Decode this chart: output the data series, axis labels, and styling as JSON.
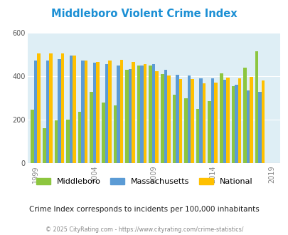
{
  "title": "Middleboro Violent Crime Index",
  "subtitle": "Crime Index corresponds to incidents per 100,000 inhabitants",
  "footer": "© 2025 CityRating.com - https://www.cityrating.com/crime-statistics/",
  "years": [
    1999,
    2000,
    2001,
    2002,
    2003,
    2004,
    2005,
    2006,
    2007,
    2008,
    2009,
    2010,
    2011,
    2012,
    2013,
    2014,
    2015,
    2016,
    2017,
    2018,
    2019
  ],
  "middleboro": [
    248,
    162,
    198,
    200,
    238,
    330,
    278,
    265,
    430,
    450,
    450,
    410,
    315,
    300,
    250,
    285,
    415,
    355,
    440,
    515,
    null
  ],
  "massachusetts": [
    472,
    472,
    480,
    495,
    472,
    462,
    458,
    450,
    435,
    450,
    455,
    430,
    408,
    405,
    390,
    390,
    385,
    360,
    335,
    330,
    null
  ],
  "national": [
    507,
    507,
    507,
    495,
    472,
    465,
    472,
    477,
    465,
    458,
    425,
    403,
    388,
    387,
    367,
    372,
    395,
    390,
    398,
    380,
    null
  ],
  "tick_years": [
    1999,
    2004,
    2009,
    2014,
    2019
  ],
  "ylim": [
    0,
    600
  ],
  "yticks": [
    0,
    200,
    400,
    600
  ],
  "bar_width": 0.27,
  "color_middleboro": "#8dc63f",
  "color_massachusetts": "#5b9bd5",
  "color_national": "#ffc000",
  "bg_color": "#deeef5",
  "fig_bg": "#ffffff",
  "title_color": "#1b8fd4",
  "subtitle_color": "#222222",
  "footer_color": "#888888",
  "legend_labels": [
    "Middleboro",
    "Massachusetts",
    "National"
  ]
}
